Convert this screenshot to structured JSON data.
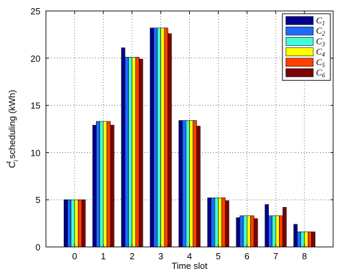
{
  "chart_data": {
    "type": "bar",
    "xlabel": "Time slot",
    "ylabel_main": "C",
    "ylabel_sup": "t",
    "ylabel_sub": "i",
    "ylabel_rest": " scheduling (kWh)",
    "categories": [
      "0",
      "1",
      "2",
      "3",
      "4",
      "5",
      "6",
      "7",
      "8"
    ],
    "ylim": [
      0,
      25
    ],
    "yticks": [
      "0",
      "5",
      "10",
      "15",
      "20",
      "25"
    ],
    "grid": true,
    "legend_position": "top-right",
    "series": [
      {
        "name": "C",
        "sub": "1",
        "color": "#00008b",
        "values": [
          5.0,
          12.9,
          21.1,
          23.2,
          13.4,
          5.2,
          3.1,
          4.5,
          2.4
        ]
      },
      {
        "name": "C",
        "sub": "2",
        "color": "#1e6bff",
        "values": [
          5.0,
          13.3,
          20.1,
          23.2,
          13.4,
          5.2,
          3.3,
          3.3,
          1.6
        ]
      },
      {
        "name": "C",
        "sub": "3",
        "color": "#40ffd8",
        "values": [
          5.0,
          13.3,
          20.1,
          23.2,
          13.4,
          5.2,
          3.3,
          3.3,
          1.6
        ]
      },
      {
        "name": "C",
        "sub": "4",
        "color": "#ffff00",
        "values": [
          5.0,
          13.3,
          20.1,
          23.2,
          13.4,
          5.2,
          3.3,
          3.3,
          1.6
        ]
      },
      {
        "name": "C",
        "sub": "5",
        "color": "#ff4000",
        "values": [
          5.0,
          13.3,
          20.1,
          23.2,
          13.4,
          5.2,
          3.3,
          3.3,
          1.6
        ]
      },
      {
        "name": "C",
        "sub": "6",
        "color": "#7f0000",
        "values": [
          5.0,
          12.9,
          19.9,
          22.6,
          12.8,
          4.9,
          3.0,
          4.2,
          1.6
        ]
      }
    ]
  }
}
